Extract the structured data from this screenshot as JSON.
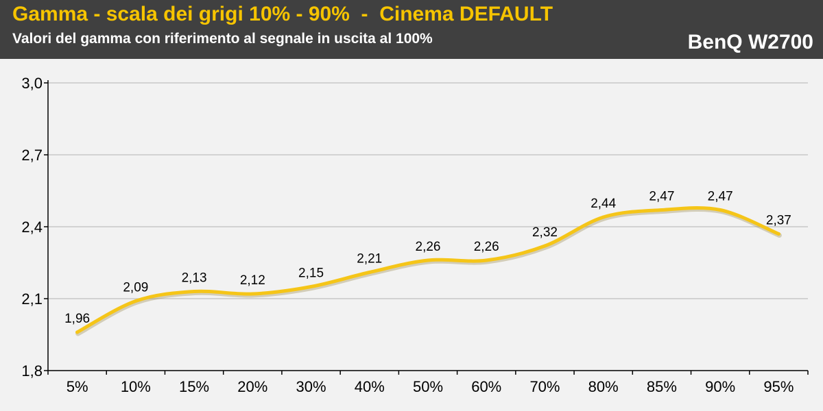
{
  "header": {
    "title": "Gamma - scala dei grigi 10% - 90%  -  Cinema DEFAULT",
    "subtitle": "Valori del gamma con riferimento al segnale in uscita al 100%",
    "brand": "BenQ W2700"
  },
  "colors": {
    "header_bg": "#404040",
    "title": "#f6c400",
    "line": "#f5c518",
    "grid": "#c8c8c8",
    "plot_bg": "#f2f2f2"
  },
  "chart_data": {
    "type": "line",
    "categories": [
      "5%",
      "10%",
      "15%",
      "20%",
      "30%",
      "40%",
      "50%",
      "60%",
      "70%",
      "80%",
      "85%",
      "90%",
      "95%"
    ],
    "series": [
      {
        "values": [
          1.96,
          2.09,
          2.13,
          2.12,
          2.15,
          2.21,
          2.26,
          2.26,
          2.32,
          2.44,
          2.47,
          2.47,
          2.37
        ]
      }
    ],
    "data_labels": [
      "1,96",
      "2,09",
      "2,13",
      "2,12",
      "2,15",
      "2,21",
      "2,26",
      "2,26",
      "2,32",
      "2,44",
      "2,47",
      "2,47",
      "2,37"
    ],
    "yticks": [
      1.8,
      2.1,
      2.4,
      2.7,
      3.0
    ],
    "ytick_labels": [
      "1,8",
      "2,1",
      "2,4",
      "2,7",
      "3,0"
    ],
    "ylim": [
      1.8,
      3.0
    ],
    "grid": true,
    "legend": "none",
    "title": "Gamma - scala dei grigi 10% - 90%  -  Cinema DEFAULT",
    "xlabel": "",
    "ylabel": ""
  }
}
